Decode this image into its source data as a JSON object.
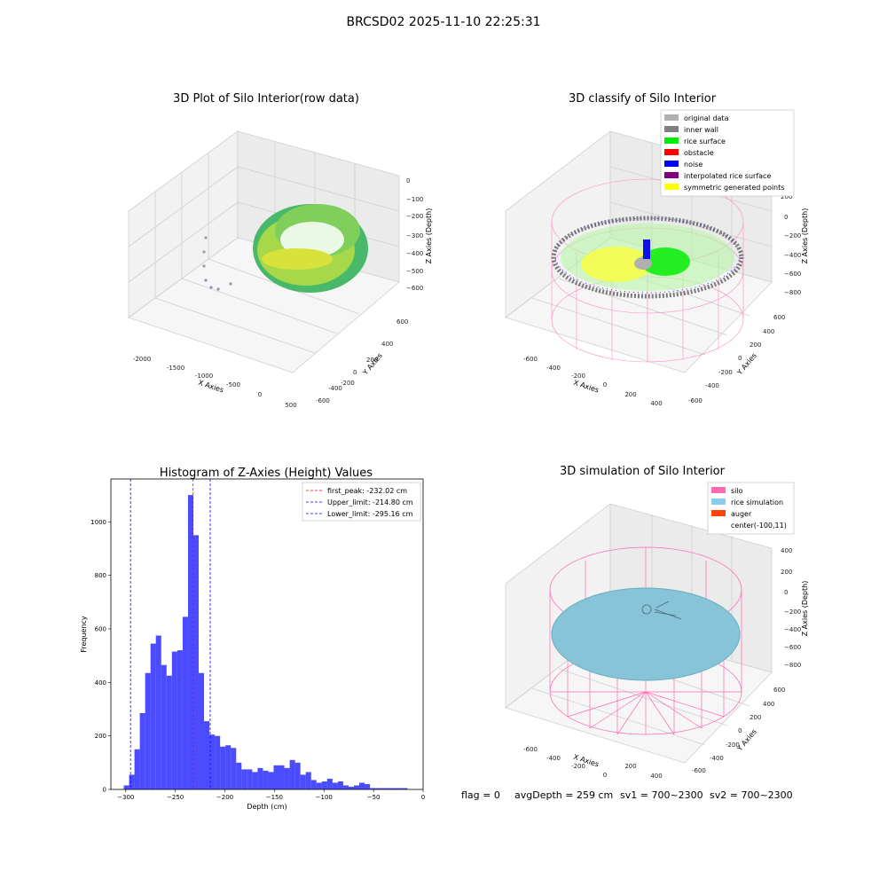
{
  "figure": {
    "suptitle": "BRCSD02 2025-11-10 22:25:31",
    "footer": {
      "flag": "flag = 0",
      "avg_depth": "avgDepth = 259 cm",
      "sv1": "sv1 = 700~2300",
      "sv2": "sv2 = 700~2300"
    }
  },
  "panels": {
    "raw": {
      "title": "3D Plot of Silo Interior(row data)",
      "xlabel": "X Axies",
      "ylabel": "Y Axies",
      "zlabel": "Z Axies (Depth)",
      "xticks": [
        "-2000",
        "-1500",
        "-1000",
        "-500",
        "0",
        "500"
      ],
      "yticks": [
        "600",
        "400",
        "200",
        "0",
        "-200",
        "-400",
        "-600"
      ],
      "zticks": [
        "0",
        "−100",
        "−200",
        "−300",
        "−400",
        "−500",
        "−600"
      ]
    },
    "classify": {
      "title": "3D classify of Silo Interior",
      "xlabel": "X Axies",
      "ylabel": "Y Axies",
      "zlabel": "Z Axies (Depth)",
      "xticks": [
        "-600",
        "-400",
        "-200",
        "0",
        "200",
        "400"
      ],
      "yticks": [
        "600",
        "400",
        "200",
        "0",
        "-200",
        "-400",
        "-600"
      ],
      "zticks": [
        "200",
        "0",
        "−200",
        "−400",
        "−600",
        "−800"
      ],
      "legend": [
        {
          "label": "original data",
          "color": "#b0b0b0"
        },
        {
          "label": "inner wall",
          "color": "#808080"
        },
        {
          "label": "rice surface",
          "color": "#00ee00"
        },
        {
          "label": "obstacle",
          "color": "#ff0000"
        },
        {
          "label": "noise",
          "color": "#0000ff"
        },
        {
          "label": "interpolated rice surface",
          "color": "#800080"
        },
        {
          "label": "symmetric generated points",
          "color": "#ffff00"
        }
      ]
    },
    "simulation": {
      "title": "3D simulation of Silo Interior",
      "xlabel": "X Axies",
      "ylabel": "Y Axies",
      "zlabel": "Z Axies (Depth)",
      "xticks": [
        "-600",
        "-400",
        "-200",
        "0",
        "200",
        "400"
      ],
      "yticks": [
        "600",
        "400",
        "200",
        "0",
        "-200",
        "-400",
        "-600"
      ],
      "zticks": [
        "400",
        "200",
        "0",
        "−200",
        "−400",
        "−600",
        "−800"
      ],
      "legend": [
        {
          "label": "silo",
          "color": "#ff69b4"
        },
        {
          "label": "rice simulation",
          "color": "#87ceeb"
        },
        {
          "label": "auger",
          "color": "#ff4500"
        },
        {
          "label": "center(-100,11)",
          "color": "#ffffff"
        }
      ]
    }
  },
  "chart_data": [
    {
      "type": "scatter",
      "title": "3D Plot of Silo Interior(row data)",
      "xlabel": "X Axies",
      "ylabel": "Y Axies",
      "zlabel": "Z Axies (Depth)",
      "xlim": [
        -2200,
        600
      ],
      "ylim": [
        -650,
        650
      ],
      "zlim": [
        -650,
        20
      ]
    },
    {
      "type": "scatter",
      "title": "3D classify of Silo Interior",
      "xlim": [
        -700,
        500
      ],
      "ylim": [
        -650,
        650
      ],
      "zlim": [
        -900,
        250
      ]
    },
    {
      "type": "bar",
      "title": "Histogram of Z-Axies (Height) Values",
      "xlabel": "Depth (cm)",
      "ylabel": "Frequency",
      "xlim": [
        -315,
        0
      ],
      "ylim": [
        0,
        1160
      ],
      "xticks": [
        -300,
        -250,
        -200,
        -150,
        -100,
        -50,
        0
      ],
      "yticks": [
        0,
        200,
        400,
        600,
        800,
        1000
      ],
      "bin_width": 5.4,
      "bins": [
        {
          "x0": -302,
          "count": 15
        },
        {
          "x0": -296.6,
          "count": 55
        },
        {
          "x0": -291.2,
          "count": 150
        },
        {
          "x0": -285.8,
          "count": 285
        },
        {
          "x0": -280.4,
          "count": 435
        },
        {
          "x0": -275,
          "count": 545
        },
        {
          "x0": -269.6,
          "count": 575
        },
        {
          "x0": -264.2,
          "count": 465
        },
        {
          "x0": -258.8,
          "count": 425
        },
        {
          "x0": -253.4,
          "count": 515
        },
        {
          "x0": -248,
          "count": 520
        },
        {
          "x0": -242.6,
          "count": 645
        },
        {
          "x0": -237.2,
          "count": 1100
        },
        {
          "x0": -231.8,
          "count": 950
        },
        {
          "x0": -226.4,
          "count": 435
        },
        {
          "x0": -221,
          "count": 255
        },
        {
          "x0": -215.6,
          "count": 205
        },
        {
          "x0": -210.2,
          "count": 200
        },
        {
          "x0": -204.8,
          "count": 160
        },
        {
          "x0": -199.4,
          "count": 165
        },
        {
          "x0": -194,
          "count": 155
        },
        {
          "x0": -188.6,
          "count": 100
        },
        {
          "x0": -183.2,
          "count": 75
        },
        {
          "x0": -177.8,
          "count": 75
        },
        {
          "x0": -172.4,
          "count": 65
        },
        {
          "x0": -167,
          "count": 80
        },
        {
          "x0": -161.6,
          "count": 70
        },
        {
          "x0": -156.2,
          "count": 65
        },
        {
          "x0": -150.8,
          "count": 90
        },
        {
          "x0": -145.4,
          "count": 90
        },
        {
          "x0": -140,
          "count": 80
        },
        {
          "x0": -134.6,
          "count": 110
        },
        {
          "x0": -129.2,
          "count": 100
        },
        {
          "x0": -123.8,
          "count": 55
        },
        {
          "x0": -118.4,
          "count": 65
        },
        {
          "x0": -113,
          "count": 35
        },
        {
          "x0": -107.6,
          "count": 25
        },
        {
          "x0": -102.2,
          "count": 30
        },
        {
          "x0": -96.8,
          "count": 40
        },
        {
          "x0": -91.4,
          "count": 25
        },
        {
          "x0": -86,
          "count": 30
        },
        {
          "x0": -80.6,
          "count": 15
        },
        {
          "x0": -75.2,
          "count": 10
        },
        {
          "x0": -69.8,
          "count": 15
        },
        {
          "x0": -64.4,
          "count": 25
        },
        {
          "x0": -59,
          "count": 20
        },
        {
          "x0": -53.6,
          "count": 5
        },
        {
          "x0": -48.2,
          "count": 5
        },
        {
          "x0": -42.8,
          "count": 5
        },
        {
          "x0": -37.4,
          "count": 5
        },
        {
          "x0": -32,
          "count": 5
        },
        {
          "x0": -26.6,
          "count": 5
        },
        {
          "x0": -21.2,
          "count": 5
        }
      ],
      "bar_color": "#0000ff",
      "lines": [
        {
          "label": "first_peak: -232.02 cm",
          "x": -232.02,
          "color": "#ff0000"
        },
        {
          "label": "Upper_limit: -214.80 cm",
          "x": -214.8,
          "color": "#0000ff"
        },
        {
          "label": "Lower_limit: -295.16 cm",
          "x": -295.16,
          "color": "#0000ff"
        }
      ],
      "legend_position": "top-right"
    },
    {
      "type": "scatter",
      "title": "3D simulation of Silo Interior",
      "xlim": [
        -700,
        500
      ],
      "ylim": [
        -650,
        650
      ],
      "zlim": [
        -900,
        450
      ]
    }
  ]
}
